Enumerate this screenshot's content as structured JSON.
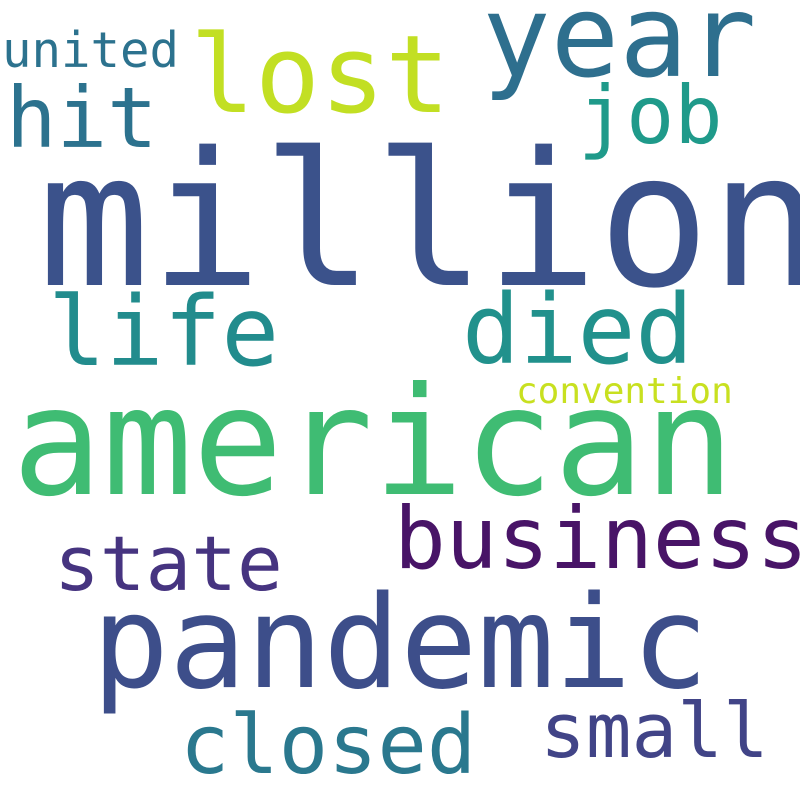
{
  "words": [
    {
      "text": "million",
      "color": "#3b528b"
    },
    {
      "text": "american",
      "color": "#3fbc73"
    },
    {
      "text": "pandemic",
      "color": "#3d4e8a"
    },
    {
      "text": "year",
      "color": "#2e6f8e"
    },
    {
      "text": "lost",
      "color": "#c2df23"
    },
    {
      "text": "died",
      "color": "#21918c"
    },
    {
      "text": "life",
      "color": "#228c8d"
    },
    {
      "text": "business",
      "color": "#481467"
    },
    {
      "text": "hit",
      "color": "#2c728e"
    },
    {
      "text": "job",
      "color": "#1f9a8a"
    },
    {
      "text": "state",
      "color": "#463480"
    },
    {
      "text": "small",
      "color": "#414487"
    },
    {
      "text": "closed",
      "color": "#2a788e"
    },
    {
      "text": "united",
      "color": "#2c728e"
    },
    {
      "text": "convention",
      "color": "#c8e020"
    }
  ]
}
